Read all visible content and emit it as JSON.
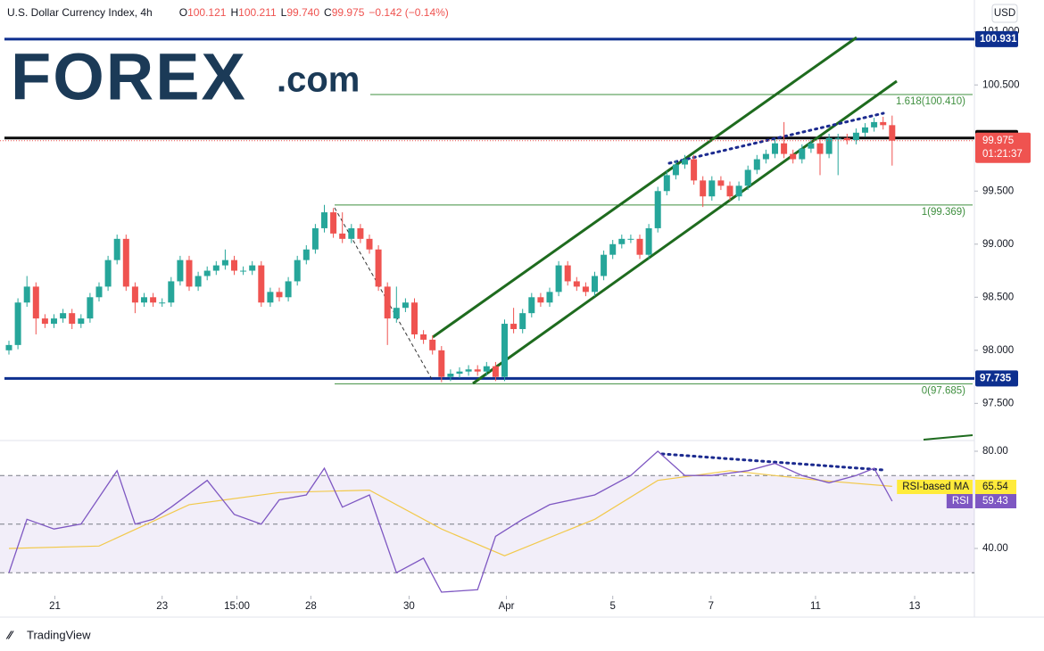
{
  "header": {
    "symbol": "U.S. Dollar Currency Index, 4h",
    "quote": [
      {
        "label": "O",
        "value": "100.121"
      },
      {
        "label": "H",
        "value": "100.211"
      },
      {
        "label": "L",
        "value": "99.740"
      },
      {
        "label": "C",
        "value": "99.975"
      }
    ],
    "change": "−0.142 (−0.14%)"
  },
  "logo": {
    "brand": "FOREX",
    "domain": ".com"
  },
  "currency": "USD",
  "footer": "TradingView",
  "chart_data": [
    {
      "type": "candlestick",
      "up_color": "#26a69a",
      "down_color": "#ef5350",
      "candles": [
        [
          98.0,
          98.09,
          97.96,
          98.05
        ],
        [
          98.05,
          98.49,
          98.01,
          98.45
        ],
        [
          98.45,
          98.7,
          98.41,
          98.6
        ],
        [
          98.6,
          98.64,
          98.15,
          98.3
        ],
        [
          98.3,
          98.34,
          98.21,
          98.25
        ],
        [
          98.25,
          98.34,
          98.21,
          98.3
        ],
        [
          98.3,
          98.39,
          98.26,
          98.35
        ],
        [
          98.35,
          98.39,
          98.2,
          98.25
        ],
        [
          98.25,
          98.34,
          98.21,
          98.3
        ],
        [
          98.3,
          98.54,
          98.26,
          98.5
        ],
        [
          98.5,
          98.64,
          98.46,
          98.6
        ],
        [
          98.6,
          98.89,
          98.56,
          98.85
        ],
        [
          98.85,
          99.09,
          98.81,
          99.05
        ],
        [
          99.05,
          99.09,
          98.56,
          98.6
        ],
        [
          98.6,
          98.64,
          98.35,
          98.45
        ],
        [
          98.45,
          98.54,
          98.41,
          98.5
        ],
        [
          98.5,
          98.54,
          98.41,
          98.45
        ],
        [
          98.45,
          98.49,
          98.41,
          98.45
        ],
        [
          98.45,
          98.69,
          98.41,
          98.65
        ],
        [
          98.65,
          98.89,
          98.61,
          98.85
        ],
        [
          98.85,
          98.89,
          98.56,
          98.6
        ],
        [
          98.6,
          98.74,
          98.56,
          98.7
        ],
        [
          98.7,
          98.79,
          98.66,
          98.75
        ],
        [
          98.75,
          98.84,
          98.71,
          98.8
        ],
        [
          98.8,
          98.95,
          98.76,
          98.85
        ],
        [
          98.85,
          98.89,
          98.71,
          98.75
        ],
        [
          98.75,
          98.79,
          98.71,
          98.75
        ],
        [
          98.75,
          98.84,
          98.71,
          98.8
        ],
        [
          98.8,
          98.84,
          98.41,
          98.45
        ],
        [
          98.45,
          98.59,
          98.41,
          98.55
        ],
        [
          98.55,
          98.59,
          98.46,
          98.5
        ],
        [
          98.5,
          98.69,
          98.46,
          98.65
        ],
        [
          98.65,
          98.89,
          98.61,
          98.85
        ],
        [
          98.85,
          98.99,
          98.81,
          98.95
        ],
        [
          98.95,
          99.19,
          98.91,
          99.15
        ],
        [
          99.15,
          99.37,
          99.11,
          99.3
        ],
        [
          99.3,
          99.34,
          99.06,
          99.1
        ],
        [
          99.1,
          99.3,
          99.01,
          99.05
        ],
        [
          99.05,
          99.19,
          99.01,
          99.15
        ],
        [
          99.15,
          99.19,
          99.01,
          99.05
        ],
        [
          99.05,
          99.09,
          98.91,
          98.95
        ],
        [
          98.95,
          98.99,
          98.56,
          98.6
        ],
        [
          98.6,
          98.64,
          98.05,
          98.3
        ],
        [
          98.3,
          98.6,
          98.26,
          98.4
        ],
        [
          98.4,
          98.49,
          98.36,
          98.45
        ],
        [
          98.45,
          98.49,
          98.11,
          98.15
        ],
        [
          98.15,
          98.19,
          98.06,
          98.1
        ],
        [
          98.1,
          98.14,
          97.96,
          98.0
        ],
        [
          98.0,
          98.04,
          97.7,
          97.75
        ],
        [
          97.75,
          97.82,
          97.71,
          97.78
        ],
        [
          97.78,
          97.84,
          97.74,
          97.8
        ],
        [
          97.8,
          97.86,
          97.76,
          97.82
        ],
        [
          97.82,
          97.86,
          97.76,
          97.8
        ],
        [
          97.8,
          97.89,
          97.76,
          97.85
        ],
        [
          97.85,
          97.89,
          97.71,
          97.75
        ],
        [
          97.75,
          98.29,
          97.71,
          98.25
        ],
        [
          98.25,
          98.4,
          98.16,
          98.2
        ],
        [
          98.2,
          98.39,
          98.16,
          98.35
        ],
        [
          98.35,
          98.54,
          98.31,
          98.5
        ],
        [
          98.5,
          98.54,
          98.41,
          98.45
        ],
        [
          98.45,
          98.59,
          98.41,
          98.55
        ],
        [
          98.55,
          98.84,
          98.51,
          98.8
        ],
        [
          98.8,
          98.84,
          98.61,
          98.65
        ],
        [
          98.65,
          98.69,
          98.56,
          98.6
        ],
        [
          98.6,
          98.64,
          98.51,
          98.55
        ],
        [
          98.55,
          98.74,
          98.51,
          98.7
        ],
        [
          98.7,
          98.94,
          98.66,
          98.9
        ],
        [
          98.9,
          99.04,
          98.86,
          99.0
        ],
        [
          99.0,
          99.09,
          98.96,
          99.05
        ],
        [
          99.05,
          99.09,
          99.01,
          99.05
        ],
        [
          99.05,
          99.09,
          98.86,
          98.9
        ],
        [
          98.9,
          99.19,
          98.86,
          99.15
        ],
        [
          99.15,
          99.54,
          99.11,
          99.5
        ],
        [
          99.5,
          99.69,
          99.46,
          99.65
        ],
        [
          99.65,
          99.79,
          99.61,
          99.75
        ],
        [
          99.75,
          99.84,
          99.71,
          99.8
        ],
        [
          99.8,
          99.84,
          99.56,
          99.6
        ],
        [
          99.6,
          99.64,
          99.35,
          99.45
        ],
        [
          99.45,
          99.64,
          99.41,
          99.6
        ],
        [
          99.6,
          99.64,
          99.51,
          99.55
        ],
        [
          99.55,
          99.59,
          99.41,
          99.45
        ],
        [
          99.45,
          99.59,
          99.41,
          99.55
        ],
        [
          99.55,
          99.74,
          99.51,
          99.7
        ],
        [
          99.7,
          99.84,
          99.66,
          99.8
        ],
        [
          99.8,
          99.89,
          99.76,
          99.85
        ],
        [
          99.85,
          99.99,
          99.81,
          99.95
        ],
        [
          99.95,
          100.15,
          99.81,
          99.85
        ],
        [
          99.85,
          99.89,
          99.76,
          99.8
        ],
        [
          99.8,
          99.94,
          99.76,
          99.9
        ],
        [
          99.9,
          99.99,
          99.86,
          99.95
        ],
        [
          99.95,
          99.99,
          99.65,
          99.85
        ],
        [
          99.85,
          100.04,
          99.81,
          100.0
        ],
        [
          100.0,
          100.04,
          99.65,
          100.0
        ],
        [
          100.0,
          100.04,
          99.94,
          99.98
        ],
        [
          99.98,
          100.09,
          99.94,
          100.05
        ],
        [
          100.05,
          100.14,
          100.01,
          100.1
        ],
        [
          100.1,
          100.19,
          100.06,
          100.15
        ],
        [
          100.15,
          100.2,
          100.08,
          100.121
        ],
        [
          100.121,
          100.211,
          99.74,
          99.975
        ]
      ],
      "xlim": [
        -0.99,
        106.93
      ],
      "xticks": [
        {
          "value": 5.1,
          "label": "21"
        },
        {
          "value": 17.0,
          "label": "23"
        },
        {
          "value": 25.3,
          "label": "15:00"
        },
        {
          "value": 33.5,
          "label": "28"
        },
        {
          "value": 44.4,
          "label": "30"
        },
        {
          "value": 55.2,
          "label": "Apr"
        },
        {
          "value": 67.0,
          "label": "5"
        },
        {
          "value": 77.9,
          "label": "7"
        },
        {
          "value": 89.5,
          "label": "11"
        },
        {
          "value": 100.5,
          "label": "13"
        }
      ],
      "ylim": [
        97.15,
        101.3
      ],
      "yticks": [
        {
          "value": 97.5,
          "label": "97.500"
        },
        {
          "value": 98,
          "label": "98.000"
        },
        {
          "value": 98.5,
          "label": "98.500"
        },
        {
          "value": 99,
          "label": "99.000"
        },
        {
          "value": 99.5,
          "label": "99.500"
        },
        {
          "value": 100.5,
          "label": "100.500"
        },
        {
          "value": 101,
          "label": "101.000"
        }
      ],
      "levels": [
        {
          "value": 100.931,
          "label": "100.931",
          "color": "#0d2f8f"
        },
        {
          "value": 100,
          "label": "100.000",
          "color": "#0a0a0a"
        },
        {
          "value": 97.735,
          "label": "97.735",
          "color": "#0d2f8f"
        }
      ],
      "fib": [
        {
          "value": 100.41,
          "label": "1.618(100.410)"
        },
        {
          "value": 99.369,
          "label": "1(99.369)"
        },
        {
          "value": 97.685,
          "label": "0(97.685)"
        }
      ],
      "fib_color": "#3f8f3f",
      "last_price": {
        "value": 99.975,
        "label": "99.975",
        "countdown": "01:21:37",
        "color": "#ef5350"
      }
    },
    {
      "type": "line",
      "ylim": [
        20.55,
        84.4
      ],
      "yticks": [
        {
          "value": 80,
          "label": "80.00"
        },
        {
          "value": 40,
          "label": "40.00"
        }
      ],
      "bands": [
        30,
        50,
        70
      ],
      "series": [
        {
          "name": "RSI-based MA",
          "color": "#f2c94c",
          "label_color": "#ffeb3b",
          "value_label": "65.54",
          "x": [
            0,
            10,
            20,
            30,
            40,
            48,
            55,
            65,
            72,
            80,
            90,
            98
          ],
          "values": [
            40,
            41,
            58,
            63,
            64,
            48,
            37,
            52,
            68,
            72,
            68,
            65.54
          ]
        },
        {
          "name": "RSI",
          "color": "#7e57c2",
          "label_color": "#7e57c2",
          "value_label": "59.43",
          "x": [
            0,
            2,
            5,
            8,
            12,
            14,
            16,
            18,
            22,
            25,
            28,
            30,
            33,
            35,
            37,
            40,
            43,
            46,
            48,
            52,
            54,
            57,
            60,
            65,
            69,
            72,
            75,
            78,
            82,
            85,
            88,
            91,
            94,
            96,
            98
          ],
          "values": [
            30,
            52,
            48,
            50,
            72,
            50,
            52,
            57,
            68,
            54,
            50,
            60,
            62,
            73,
            57,
            62,
            30,
            36,
            22,
            23,
            45,
            52,
            58,
            62,
            70,
            80,
            70,
            70,
            72,
            75,
            70,
            67,
            70,
            73,
            59.43
          ]
        }
      ]
    }
  ]
}
